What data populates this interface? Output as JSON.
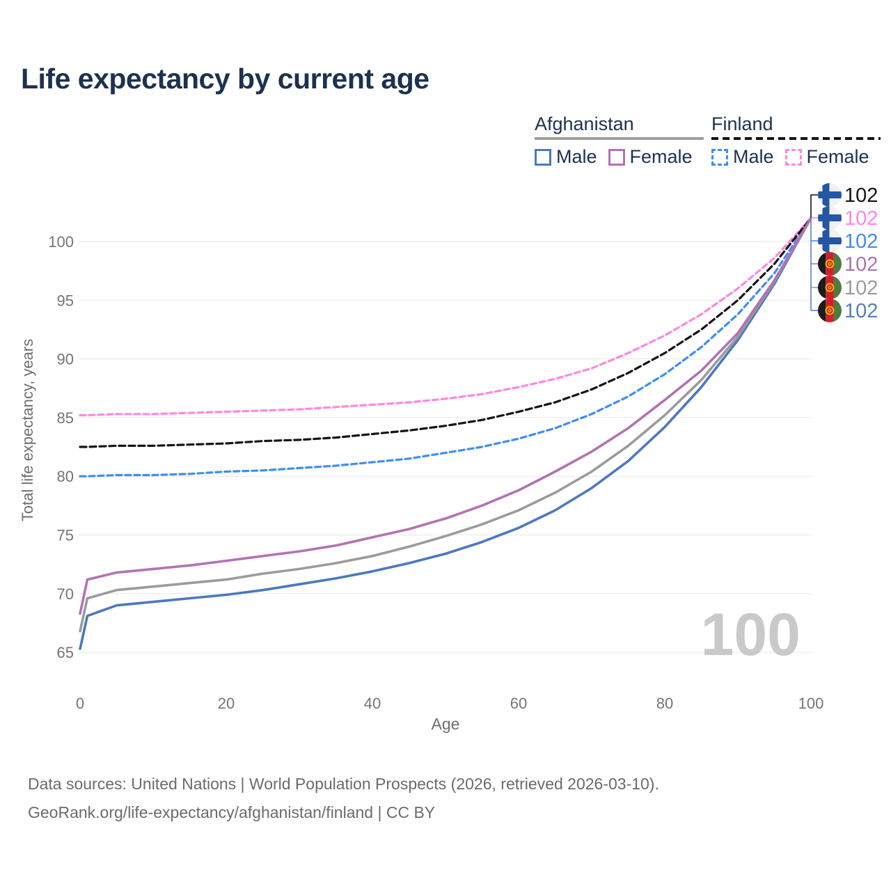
{
  "title": "Life expectancy by current age",
  "legend": {
    "groups": [
      {
        "country": "Afghanistan",
        "underline_color": "#9e9e9e",
        "underline_style": "solid",
        "items": [
          {
            "label": "Male",
            "color": "#4b79c1",
            "dashed": false
          },
          {
            "label": "Female",
            "color": "#b273b2",
            "dashed": false
          }
        ]
      },
      {
        "country": "Finland",
        "underline_color": "#141414",
        "underline_style": "dashed",
        "items": [
          {
            "label": "Male",
            "color": "#3f8df5",
            "dashed": true
          },
          {
            "label": "Female",
            "color": "#ff87e1",
            "dashed": true
          }
        ]
      }
    ]
  },
  "watermark": "100",
  "end_labels": [
    {
      "value": "102",
      "flag": "finland",
      "color": "#141414"
    },
    {
      "value": "102",
      "flag": "finland",
      "color": "#ff87e1"
    },
    {
      "value": "102",
      "flag": "finland",
      "color": "#3f8df5"
    },
    {
      "value": "102",
      "flag": "afghanistan",
      "color": "#b072ae"
    },
    {
      "value": "102",
      "flag": "afghanistan",
      "color": "#9b9b9b"
    },
    {
      "value": "102",
      "flag": "afghanistan",
      "color": "#5580c0"
    }
  ],
  "footer": {
    "line1": "Data sources: United Nations | World Population Prospects (2026, retrieved 2026-03-10).",
    "line2": "GeoRank.org/life-expectancy/afghanistan/finland | CC BY"
  },
  "chart_data": {
    "type": "line",
    "title": "Life expectancy by current age",
    "xlabel": "Age",
    "ylabel": "Total life expectancy, years",
    "xlim": [
      0,
      100
    ],
    "ylim": [
      63,
      104
    ],
    "x_ticks": [
      0,
      20,
      40,
      60,
      80,
      100
    ],
    "y_ticks": [
      65,
      70,
      75,
      80,
      85,
      90,
      95,
      100
    ],
    "grid": "horizontal-only",
    "legend_position": "top-right",
    "x": [
      0,
      1,
      5,
      10,
      15,
      20,
      25,
      30,
      35,
      40,
      45,
      50,
      55,
      60,
      65,
      70,
      75,
      80,
      85,
      90,
      95,
      100
    ],
    "series": [
      {
        "name": "Finland Female",
        "color": "#ff87e1",
        "dash": "8,5",
        "width": 3.2,
        "values": [
          85.2,
          85.2,
          85.3,
          85.3,
          85.4,
          85.5,
          85.6,
          85.7,
          85.9,
          86.1,
          86.3,
          86.6,
          87.0,
          87.6,
          88.3,
          89.2,
          90.5,
          92.0,
          93.8,
          96.0,
          98.6,
          102
        ]
      },
      {
        "name": "Finland Male",
        "color": "#3f8df5",
        "dash": "8,5",
        "width": 3.2,
        "values": [
          80.0,
          80.0,
          80.1,
          80.1,
          80.2,
          80.4,
          80.5,
          80.7,
          80.9,
          81.2,
          81.5,
          82.0,
          82.5,
          83.2,
          84.1,
          85.3,
          86.8,
          88.7,
          91.0,
          93.8,
          97.3,
          102
        ]
      },
      {
        "name": "Finland Both sexes",
        "color": "#141414",
        "dash": "9,5",
        "width": 3.2,
        "values": [
          82.5,
          82.5,
          82.6,
          82.6,
          82.7,
          82.8,
          83.0,
          83.1,
          83.3,
          83.6,
          83.9,
          84.3,
          84.8,
          85.5,
          86.3,
          87.4,
          88.8,
          90.5,
          92.5,
          95.0,
          98.1,
          102
        ]
      },
      {
        "name": "Afghanistan Male",
        "color": "#4b79c1",
        "dash": null,
        "width": 3.6,
        "values": [
          65.3,
          68.1,
          69.0,
          69.3,
          69.6,
          69.9,
          70.3,
          70.8,
          71.3,
          71.9,
          72.6,
          73.4,
          74.4,
          75.6,
          77.1,
          79.0,
          81.3,
          84.2,
          87.6,
          91.6,
          96.4,
          102
        ]
      },
      {
        "name": "Afghanistan Both sexes",
        "color": "#9b9b9b",
        "dash": null,
        "width": 3.6,
        "values": [
          66.8,
          69.6,
          70.3,
          70.6,
          70.9,
          71.2,
          71.7,
          72.1,
          72.6,
          73.2,
          74.0,
          74.9,
          75.9,
          77.1,
          78.6,
          80.4,
          82.6,
          85.2,
          88.2,
          91.9,
          96.6,
          102
        ]
      },
      {
        "name": "Afghanistan Female",
        "color": "#b273b2",
        "dash": null,
        "width": 3.6,
        "values": [
          68.3,
          71.2,
          71.8,
          72.1,
          72.4,
          72.8,
          73.2,
          73.6,
          74.1,
          74.8,
          75.5,
          76.4,
          77.5,
          78.8,
          80.4,
          82.1,
          84.1,
          86.5,
          89.0,
          92.2,
          96.7,
          102
        ]
      }
    ]
  }
}
